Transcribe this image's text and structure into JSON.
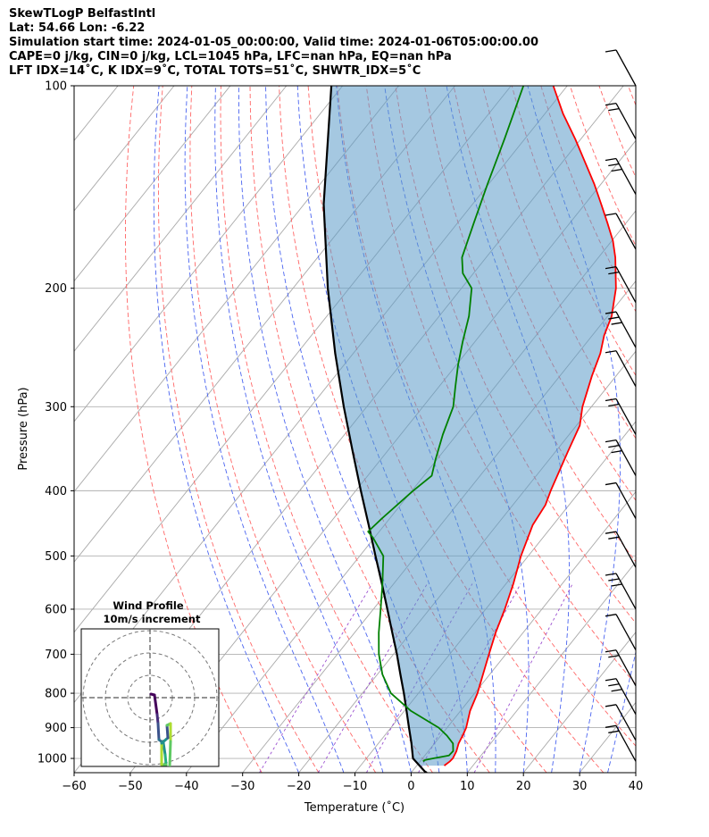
{
  "title_lines": [
    "SkewTLogP BelfastIntl",
    "Lat: 54.66   Lon: -6.22",
    "Simulation start time: 2024-01-05_00:00:00, Valid time: 2024-01-06T05:00:00.00",
    "CAPE=0 j/kg, CIN=0 j/kg, LCL=1045 hPa, LFC=nan hPa, EQ=nan hPa",
    "LFT IDX=14˚C, K IDX=9˚C, TOTAL TOTS=51˚C, SHWTR_IDX=5˚C"
  ],
  "chart_data": {
    "type": "skewt-logp",
    "xlabel": "Temperature (˚C)",
    "ylabel": "Pressure (hPa)",
    "xlim": [
      -60,
      40
    ],
    "ylim": [
      1050,
      100
    ],
    "y_scale": "log",
    "grid": true,
    "x_ticks": [
      "−60",
      "−50",
      "−40",
      "−30",
      "−20",
      "−10",
      "0",
      "10",
      "20",
      "30",
      "40"
    ],
    "x_tick_values": [
      -60,
      -50,
      -40,
      -30,
      -20,
      -10,
      0,
      10,
      20,
      30,
      40
    ],
    "y_ticks": [
      "1000",
      "900",
      "800",
      "700",
      "600",
      "500",
      "400",
      "300",
      "200",
      "100"
    ],
    "y_tick_values": [
      1000,
      900,
      800,
      700,
      600,
      500,
      400,
      300,
      200,
      100
    ],
    "series": [
      {
        "role": "temperature",
        "color": "#ff0000",
        "points": [
          [
            1025,
            4.9
          ],
          [
            1010,
            5.3
          ],
          [
            1000,
            5.4
          ],
          [
            975,
            5.0
          ],
          [
            950,
            4.3
          ],
          [
            925,
            3.9
          ],
          [
            900,
            3.4
          ],
          [
            850,
            1.7
          ],
          [
            800,
            0.5
          ],
          [
            750,
            -1.2
          ],
          [
            700,
            -3.0
          ],
          [
            650,
            -4.9
          ],
          [
            600,
            -6.6
          ],
          [
            550,
            -8.7
          ],
          [
            500,
            -11.3
          ],
          [
            450,
            -13.6
          ],
          [
            420,
            -14.2
          ],
          [
            400,
            -15.3
          ],
          [
            350,
            -17.8
          ],
          [
            320,
            -19.4
          ],
          [
            300,
            -21.6
          ],
          [
            270,
            -24.3
          ],
          [
            250,
            -26.0
          ],
          [
            235,
            -27.9
          ],
          [
            220,
            -29.3
          ],
          [
            200,
            -32.5
          ],
          [
            180,
            -37.0
          ],
          [
            170,
            -39.8
          ],
          [
            160,
            -43.3
          ],
          [
            150,
            -47.1
          ],
          [
            140,
            -51.2
          ],
          [
            130,
            -55.9
          ],
          [
            120,
            -61.0
          ],
          [
            110,
            -66.8
          ],
          [
            100,
            -72.5
          ]
        ]
      },
      {
        "role": "dewpoint",
        "color": "#008000",
        "points": [
          [
            1010,
            0.5
          ],
          [
            1005,
            0.7
          ],
          [
            1000,
            1.9
          ],
          [
            990,
            4.3
          ],
          [
            975,
            4.4
          ],
          [
            950,
            3.3
          ],
          [
            925,
            1.1
          ],
          [
            900,
            -1.5
          ],
          [
            850,
            -8.8
          ],
          [
            800,
            -14.9
          ],
          [
            750,
            -19.1
          ],
          [
            700,
            -22.6
          ],
          [
            650,
            -25.7
          ],
          [
            600,
            -28.7
          ],
          [
            550,
            -32.0
          ],
          [
            500,
            -35.8
          ],
          [
            470,
            -40.2
          ],
          [
            460,
            -42.0
          ],
          [
            440,
            -41.4
          ],
          [
            400,
            -39.8
          ],
          [
            380,
            -38.6
          ],
          [
            360,
            -40.2
          ],
          [
            330,
            -42.5
          ],
          [
            300,
            -44.6
          ],
          [
            280,
            -47.1
          ],
          [
            260,
            -49.7
          ],
          [
            240,
            -52.2
          ],
          [
            220,
            -54.7
          ],
          [
            200,
            -58.2
          ],
          [
            190,
            -61.9
          ],
          [
            180,
            -64.3
          ],
          [
            160,
            -67.1
          ],
          [
            140,
            -70.2
          ],
          [
            120,
            -73.6
          ],
          [
            100,
            -77.8
          ]
        ]
      },
      {
        "role": "parcel",
        "color": "#000000",
        "points": [
          [
            1050,
            2.8
          ],
          [
            1045,
            2.2
          ],
          [
            1000,
            -1.7
          ],
          [
            950,
            -4.1
          ],
          [
            900,
            -6.8
          ],
          [
            850,
            -9.6
          ],
          [
            800,
            -12.6
          ],
          [
            750,
            -15.9
          ],
          [
            700,
            -19.4
          ],
          [
            650,
            -23.3
          ],
          [
            600,
            -27.5
          ],
          [
            550,
            -32.1
          ],
          [
            500,
            -37.2
          ],
          [
            450,
            -42.8
          ],
          [
            400,
            -49.1
          ],
          [
            350,
            -56.1
          ],
          [
            300,
            -64.1
          ],
          [
            250,
            -73.2
          ],
          [
            200,
            -83.8
          ],
          [
            150,
            -96.5
          ],
          [
            100,
            -112.0
          ]
        ]
      }
    ],
    "wind_barbs_right_edge": true,
    "hodograph": {
      "title": "Wind Profile",
      "subtitle": "10m/s increment",
      "ring_increment_ms": 10
    }
  }
}
